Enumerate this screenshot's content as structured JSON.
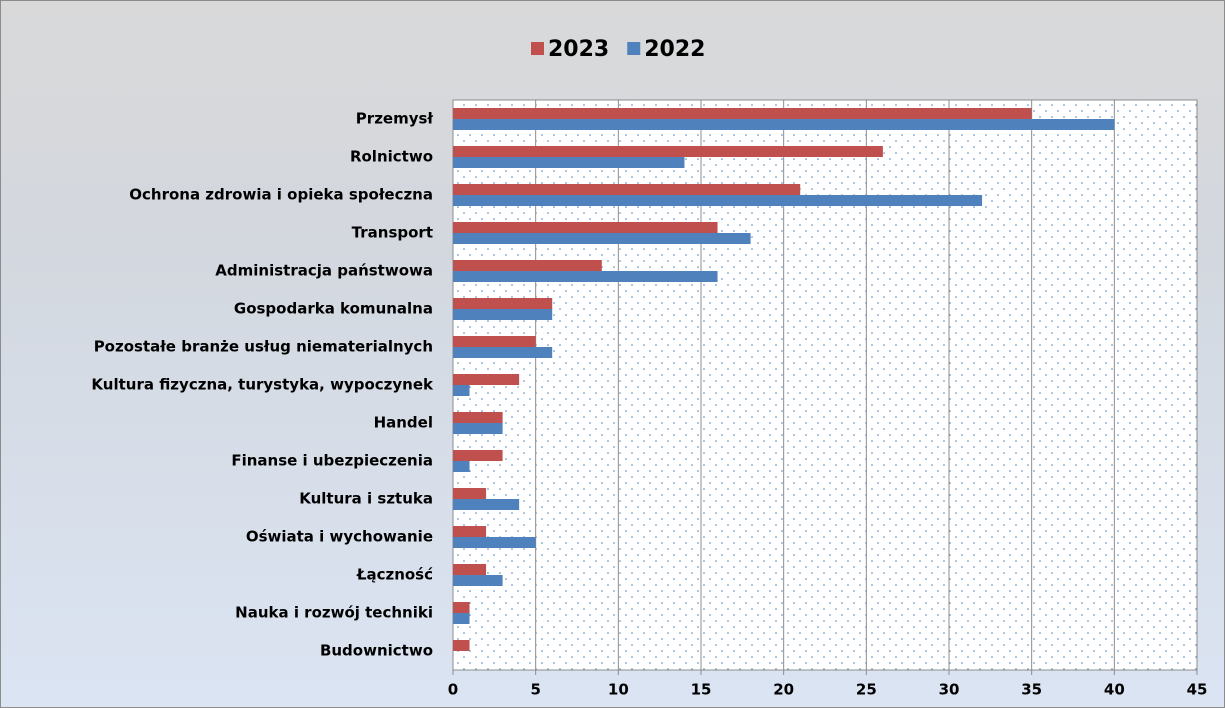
{
  "chart_data": {
    "type": "bar",
    "orientation": "horizontal",
    "categories": [
      "Przemysł",
      "Rolnictwo",
      "Ochrona zdrowia i opieka społeczna",
      "Transport",
      "Administracja państwowa",
      "Gospodarka komunalna",
      "Pozostałe branże usług niematerialnych",
      "Kultura fizyczna, turystyka, wypoczynek",
      "Handel",
      "Finanse i ubezpieczenia",
      "Kultura i sztuka",
      "Oświata i wychowanie",
      "Łączność",
      "Nauka i rozwój techniki",
      "Budownictwo"
    ],
    "series": [
      {
        "name": "2023",
        "color": "#c0504d",
        "values": [
          35,
          26,
          21,
          16,
          9,
          6,
          5,
          4,
          3,
          3,
          2,
          2,
          2,
          1,
          1
        ]
      },
      {
        "name": "2022",
        "color": "#4f81bd",
        "values": [
          40,
          14,
          32,
          18,
          16,
          6,
          6,
          1,
          3,
          1,
          4,
          5,
          3,
          1,
          0
        ]
      }
    ],
    "xlim": [
      0,
      45
    ],
    "xticks": [
      0,
      5,
      10,
      15,
      20,
      25,
      30,
      35,
      40,
      45
    ],
    "grid": true,
    "legend": "top"
  }
}
